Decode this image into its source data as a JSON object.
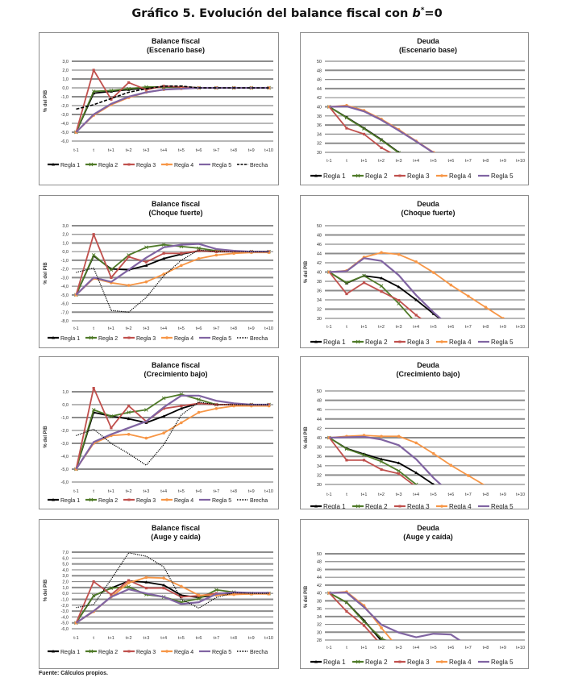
{
  "page": {
    "title_prefix": "Gráfico 5. Evolución del balance fiscal con ",
    "title_var": "b",
    "title_sup": "*",
    "title_suffix": "=0",
    "source": "Fuente: Cálculos propios."
  },
  "colors": {
    "Regla 1": "#000000",
    "Regla 2": "#4f7a28",
    "Regla 3": "#c0504d",
    "Regla 4": "#f79646",
    "Regla 5": "#8064a2",
    "Brecha": "#000000",
    "grid": "#8c8c8c"
  },
  "chart_data": [
    {
      "id": "balance-base",
      "type": "line",
      "title": "Balance fiscal",
      "subtitle": "(Escenario base)",
      "xlabel": "",
      "ylabel": "% del PIB",
      "categories": [
        "t-1",
        "t",
        "t+1",
        "t+2",
        "t+3",
        "t+4",
        "t+5",
        "t+6",
        "t+7",
        "t+8",
        "t+9",
        "t+10"
      ],
      "ylim": [
        -6,
        3
      ],
      "ystep": 1,
      "ydecimals": 1,
      "grid": true,
      "legend": "bottom",
      "series": [
        {
          "name": "Regla 1",
          "marker": "triangle",
          "values": [
            -5.0,
            -0.6,
            -0.4,
            -0.2,
            0.0,
            0.1,
            0.1,
            0.0,
            0.0,
            0.0,
            0.0,
            0.0
          ]
        },
        {
          "name": "Regla 2",
          "marker": "x",
          "values": [
            -5.0,
            -0.4,
            -0.3,
            -0.1,
            0.1,
            0.1,
            0.1,
            0.0,
            0.0,
            0.0,
            0.0,
            0.0
          ]
        },
        {
          "name": "Regla 3",
          "marker": "square",
          "values": [
            -5.0,
            2.0,
            -1.3,
            0.6,
            -0.2,
            0.2,
            0.1,
            0.0,
            0.0,
            0.0,
            0.0,
            0.0
          ]
        },
        {
          "name": "Regla 4",
          "marker": "circle",
          "values": [
            -5.0,
            -3.1,
            -1.9,
            -1.1,
            -0.5,
            -0.2,
            -0.1,
            0.0,
            0.0,
            0.0,
            0.0,
            0.0
          ]
        },
        {
          "name": "Regla 5",
          "marker": "none",
          "values": [
            -5.0,
            -3.0,
            -1.8,
            -1.0,
            -0.5,
            -0.2,
            -0.1,
            0.0,
            0.0,
            0.0,
            0.0,
            0.0
          ]
        },
        {
          "name": "Brecha",
          "marker": "none",
          "dash": "dashed",
          "values": [
            -2.4,
            -1.9,
            -1.2,
            -0.5,
            -0.1,
            0.2,
            0.2,
            0.0,
            0.0,
            0.0,
            0.0,
            0.0
          ]
        }
      ]
    },
    {
      "id": "deuda-base",
      "type": "line",
      "title": "Deuda",
      "subtitle": "(Escenario base)",
      "xlabel": "",
      "ylabel": "",
      "categories": [
        "t-1",
        "t",
        "t+1",
        "t+2",
        "t+3",
        "t+4",
        "t+5",
        "t+6",
        "t+7",
        "t+8",
        "t+9",
        "t+10"
      ],
      "ylim": [
        30,
        50
      ],
      "ystep": 2,
      "ydecimals": 0,
      "grid": true,
      "legend": "bottom",
      "series": [
        {
          "name": "Regla 1",
          "marker": "triangle",
          "values": [
            40.0,
            37.7,
            35.3,
            32.8,
            30.0,
            27.0,
            null,
            null,
            null,
            null,
            null,
            null
          ]
        },
        {
          "name": "Regla 2",
          "marker": "x",
          "values": [
            40.0,
            37.6,
            35.2,
            32.7,
            29.9,
            27.0,
            null,
            null,
            null,
            null,
            null,
            null
          ]
        },
        {
          "name": "Regla 3",
          "marker": "square",
          "values": [
            40.0,
            35.3,
            34.0,
            31.0,
            29.0,
            null,
            null,
            null,
            null,
            null,
            null,
            null
          ]
        },
        {
          "name": "Regla 4",
          "marker": "circle",
          "values": [
            40.0,
            40.3,
            39.2,
            37.3,
            35.0,
            32.5,
            30.0,
            27.5,
            null,
            null,
            null,
            null
          ]
        },
        {
          "name": "Regla 5",
          "marker": "none",
          "values": [
            40.0,
            40.1,
            39.0,
            37.1,
            34.8,
            32.4,
            29.9,
            27.4,
            null,
            null,
            null,
            null
          ]
        }
      ]
    },
    {
      "id": "balance-choque",
      "type": "line",
      "title": "Balance fiscal",
      "subtitle": "(Choque fuerte)",
      "xlabel": "",
      "ylabel": "% del PIB",
      "categories": [
        "t-1",
        "t",
        "t+1",
        "t+2",
        "t+3",
        "t+4",
        "t+5",
        "t+6",
        "t+7",
        "t+8",
        "t+9",
        "t+10"
      ],
      "ylim": [
        -8,
        3
      ],
      "ystep": 1,
      "ydecimals": 1,
      "grid": true,
      "legend": "bottom",
      "series": [
        {
          "name": "Regla 1",
          "marker": "triangle",
          "values": [
            -5.0,
            -0.5,
            -2.0,
            -2.1,
            -1.6,
            -0.8,
            -0.3,
            0.1,
            0.0,
            0.0,
            0.0,
            0.0
          ]
        },
        {
          "name": "Regla 2",
          "marker": "x",
          "values": [
            -5.0,
            -0.4,
            -2.1,
            -0.4,
            0.5,
            0.8,
            0.6,
            0.4,
            0.1,
            0.0,
            0.0,
            0.0
          ]
        },
        {
          "name": "Regla 3",
          "marker": "square",
          "values": [
            -5.0,
            2.0,
            -3.0,
            -0.6,
            -1.2,
            -0.2,
            -0.2,
            0.1,
            0.0,
            0.0,
            0.0,
            0.0
          ]
        },
        {
          "name": "Regla 4",
          "marker": "circle",
          "values": [
            -5.0,
            -3.1,
            -3.6,
            -3.9,
            -3.5,
            -2.6,
            -1.6,
            -0.8,
            -0.4,
            -0.2,
            -0.1,
            -0.1
          ]
        },
        {
          "name": "Regla 5",
          "marker": "none",
          "values": [
            -5.0,
            -3.0,
            -3.5,
            -2.1,
            -0.7,
            0.5,
            0.8,
            0.9,
            0.3,
            0.1,
            0.0,
            0.0
          ]
        },
        {
          "name": "Brecha",
          "marker": "none",
          "dash": "dotted",
          "values": [
            -2.4,
            -1.9,
            -6.8,
            -7.0,
            -5.3,
            -2.8,
            -1.0,
            0.2,
            0.0,
            0.0,
            0.0,
            0.0
          ]
        }
      ]
    },
    {
      "id": "deuda-choque",
      "type": "line",
      "title": "Deuda",
      "subtitle": "(Choque fuerte)",
      "xlabel": "",
      "ylabel": "% del PIB",
      "categories": [
        "t-1",
        "t",
        "t+1",
        "t+2",
        "t+3",
        "t+4",
        "t+5",
        "t+6",
        "t+7",
        "t+8",
        "t+9",
        "t+10"
      ],
      "ylim": [
        30,
        50
      ],
      "ystep": 2,
      "ydecimals": 0,
      "grid": true,
      "legend": "bottom",
      "series": [
        {
          "name": "Regla 1",
          "marker": "triangle",
          "values": [
            40.0,
            37.6,
            39.2,
            38.7,
            36.8,
            34.0,
            31.0,
            28.0,
            null,
            null,
            null,
            null
          ]
        },
        {
          "name": "Regla 2",
          "marker": "x",
          "values": [
            40.0,
            37.7,
            39.2,
            37.0,
            33.2,
            29.0,
            null,
            null,
            null,
            null,
            null,
            null
          ]
        },
        {
          "name": "Regla 3",
          "marker": "square",
          "values": [
            40.0,
            35.3,
            37.7,
            35.8,
            33.9,
            30.7,
            28.0,
            null,
            null,
            null,
            null,
            null
          ]
        },
        {
          "name": "Regla 4",
          "marker": "circle",
          "values": [
            40.0,
            40.3,
            43.2,
            44.2,
            43.8,
            42.2,
            39.9,
            37.2,
            34.8,
            32.4,
            30.0,
            27.6
          ]
        },
        {
          "name": "Regla 5",
          "marker": "none",
          "values": [
            40.0,
            40.2,
            43.0,
            42.4,
            39.3,
            35.0,
            31.3,
            28.0,
            null,
            null,
            null,
            null
          ]
        }
      ]
    },
    {
      "id": "balance-crecimiento",
      "type": "line",
      "title": "Balance fiscal",
      "subtitle": "(Crecimiento bajo)",
      "xlabel": "",
      "ylabel": "% del PIB",
      "categories": [
        "t-1",
        "t",
        "t+1",
        "t+2",
        "t+3",
        "t+4",
        "t+5",
        "t+6",
        "t+7",
        "t+8",
        "t+9",
        "t+10"
      ],
      "ylim": [
        -6,
        1
      ],
      "ystep": 1,
      "ydecimals": 1,
      "grid": true,
      "legend": "bottom",
      "series": [
        {
          "name": "Regla 1",
          "marker": "triangle",
          "values": [
            -5.0,
            -0.6,
            -0.9,
            -1.1,
            -1.4,
            -0.9,
            -0.3,
            0.1,
            0.0,
            0.0,
            0.0,
            0.0
          ]
        },
        {
          "name": "Regla 2",
          "marker": "x",
          "values": [
            -5.0,
            -0.4,
            -0.9,
            -0.6,
            -0.4,
            0.5,
            0.8,
            0.4,
            0.0,
            0.0,
            0.0,
            0.0
          ]
        },
        {
          "name": "Regla 3",
          "marker": "square",
          "values": [
            -5.0,
            1.3,
            -1.8,
            -0.1,
            -1.3,
            -0.3,
            -0.1,
            0.1,
            0.0,
            0.0,
            0.0,
            0.0
          ]
        },
        {
          "name": "Regla 4",
          "marker": "circle",
          "values": [
            -5.0,
            -3.0,
            -2.4,
            -2.3,
            -2.6,
            -2.2,
            -1.4,
            -0.6,
            -0.3,
            -0.1,
            -0.1,
            -0.1
          ]
        },
        {
          "name": "Regla 5",
          "marker": "none",
          "values": [
            -5.0,
            -2.9,
            -2.3,
            -1.8,
            -1.3,
            -0.2,
            0.7,
            0.7,
            0.3,
            0.1,
            0.0,
            0.0
          ]
        },
        {
          "name": "Brecha",
          "marker": "none",
          "dash": "dotted",
          "values": [
            -2.4,
            -1.9,
            -3.0,
            -3.8,
            -4.7,
            -3.1,
            -0.8,
            0.2,
            0.0,
            0.0,
            0.0,
            0.0
          ]
        }
      ]
    },
    {
      "id": "deuda-crecimiento",
      "type": "line",
      "title": "Deuda",
      "subtitle": "(Crecimiento bajo)",
      "xlabel": "",
      "ylabel": "% del PIB",
      "categories": [
        "t-1",
        "t",
        "t+1",
        "t+2",
        "t+3",
        "t+4",
        "t+5",
        "t+6",
        "t+7",
        "t+8",
        "t+9",
        "t+10"
      ],
      "ylim": [
        30,
        50
      ],
      "ystep": 2,
      "ydecimals": 0,
      "grid": true,
      "legend": "bottom",
      "series": [
        {
          "name": "Regla 1",
          "marker": "triangle",
          "values": [
            40.0,
            37.7,
            36.5,
            35.4,
            34.6,
            32.5,
            30.0,
            27.5,
            null,
            null,
            null,
            null
          ]
        },
        {
          "name": "Regla 2",
          "marker": "x",
          "values": [
            40.0,
            37.6,
            36.3,
            34.9,
            32.9,
            30.0,
            null,
            null,
            null,
            null,
            null,
            null
          ]
        },
        {
          "name": "Regla 3",
          "marker": "square",
          "values": [
            40.0,
            35.2,
            35.2,
            33.2,
            32.3,
            29.5,
            null,
            null,
            null,
            null,
            null,
            null
          ]
        },
        {
          "name": "Regla 4",
          "marker": "circle",
          "values": [
            40.0,
            40.3,
            40.5,
            40.3,
            40.3,
            38.9,
            36.6,
            34.1,
            31.9,
            29.7,
            null,
            null
          ]
        },
        {
          "name": "Regla 5",
          "marker": "none",
          "values": [
            40.0,
            40.1,
            40.2,
            39.6,
            38.4,
            35.4,
            31.4,
            28.0,
            null,
            null,
            null,
            null
          ]
        }
      ]
    },
    {
      "id": "balance-auge",
      "type": "line",
      "title": "Balance fiscal",
      "subtitle": "(Auge y caída)",
      "xlabel": "",
      "ylabel": "% del PIB",
      "categories": [
        "t-1",
        "t",
        "t+1",
        "t+2",
        "t+3",
        "t+4",
        "t+5",
        "t+6",
        "t+7",
        "t+8",
        "t+9",
        "t+10"
      ],
      "ylim": [
        -6,
        7
      ],
      "ystep": 1,
      "ydecimals": 1,
      "grid": true,
      "legend": "bottom",
      "series": [
        {
          "name": "Regla 1",
          "marker": "triangle",
          "values": [
            -5.0,
            -0.4,
            0.9,
            2.1,
            1.9,
            1.4,
            -0.3,
            -0.7,
            -0.2,
            0.1,
            0.0,
            0.0
          ]
        },
        {
          "name": "Regla 2",
          "marker": "x",
          "values": [
            -5.0,
            -0.4,
            0.9,
            1.1,
            -0.2,
            -0.6,
            -1.5,
            -0.9,
            0.6,
            0.2,
            0.0,
            0.0
          ]
        },
        {
          "name": "Regla 3",
          "marker": "square",
          "values": [
            -5.0,
            2.0,
            -0.2,
            2.2,
            0.9,
            0.9,
            -0.6,
            -0.4,
            0.0,
            0.1,
            0.0,
            0.0
          ]
        },
        {
          "name": "Regla 4",
          "marker": "circle",
          "values": [
            -5.0,
            -3.1,
            -0.6,
            1.8,
            2.7,
            2.6,
            1.2,
            -0.3,
            -0.3,
            -0.2,
            -0.1,
            -0.1
          ]
        },
        {
          "name": "Regla 5",
          "marker": "none",
          "values": [
            -5.0,
            -3.0,
            -0.6,
            0.7,
            0.0,
            -0.6,
            -1.8,
            -1.5,
            -0.1,
            0.2,
            0.1,
            0.1
          ]
        },
        {
          "name": "Brecha",
          "marker": "none",
          "dash": "dotted",
          "values": [
            -2.4,
            -1.9,
            2.4,
            6.9,
            6.3,
            4.5,
            -1.0,
            -2.5,
            -0.7,
            0.1,
            0.0,
            0.0
          ]
        }
      ]
    },
    {
      "id": "deuda-auge",
      "type": "line",
      "title": "Deuda",
      "subtitle": "(Auge y caída)",
      "xlabel": "",
      "ylabel": "% del PIB",
      "categories": [
        "t-1",
        "t",
        "t+1",
        "t+2",
        "t+3",
        "t+4",
        "t+5",
        "t+6",
        "t+7",
        "t+8",
        "t+9",
        "t+10"
      ],
      "ylim": [
        28,
        50
      ],
      "ystep": 2,
      "ydecimals": 0,
      "grid": true,
      "legend": "bottom",
      "series": [
        {
          "name": "Regla 1",
          "marker": "triangle",
          "values": [
            40.0,
            37.6,
            33.0,
            27.8,
            null,
            null,
            null,
            null,
            null,
            null,
            null,
            null
          ]
        },
        {
          "name": "Regla 2",
          "marker": "x",
          "values": [
            40.0,
            37.6,
            32.7,
            28.4,
            26.5,
            null,
            null,
            null,
            null,
            null,
            null,
            null
          ]
        },
        {
          "name": "Regla 3",
          "marker": "square",
          "values": [
            40.0,
            35.3,
            31.7,
            26.7,
            null,
            null,
            null,
            null,
            null,
            null,
            null,
            null
          ]
        },
        {
          "name": "Regla 4",
          "marker": "circle",
          "values": [
            40.0,
            40.3,
            36.8,
            31.1,
            25.8,
            null,
            null,
            null,
            null,
            null,
            null,
            null
          ]
        },
        {
          "name": "Regla 5",
          "marker": "none",
          "values": [
            40.0,
            40.1,
            36.4,
            31.9,
            29.9,
            28.7,
            29.6,
            29.4,
            26.5,
            null,
            null,
            null
          ]
        }
      ]
    }
  ]
}
